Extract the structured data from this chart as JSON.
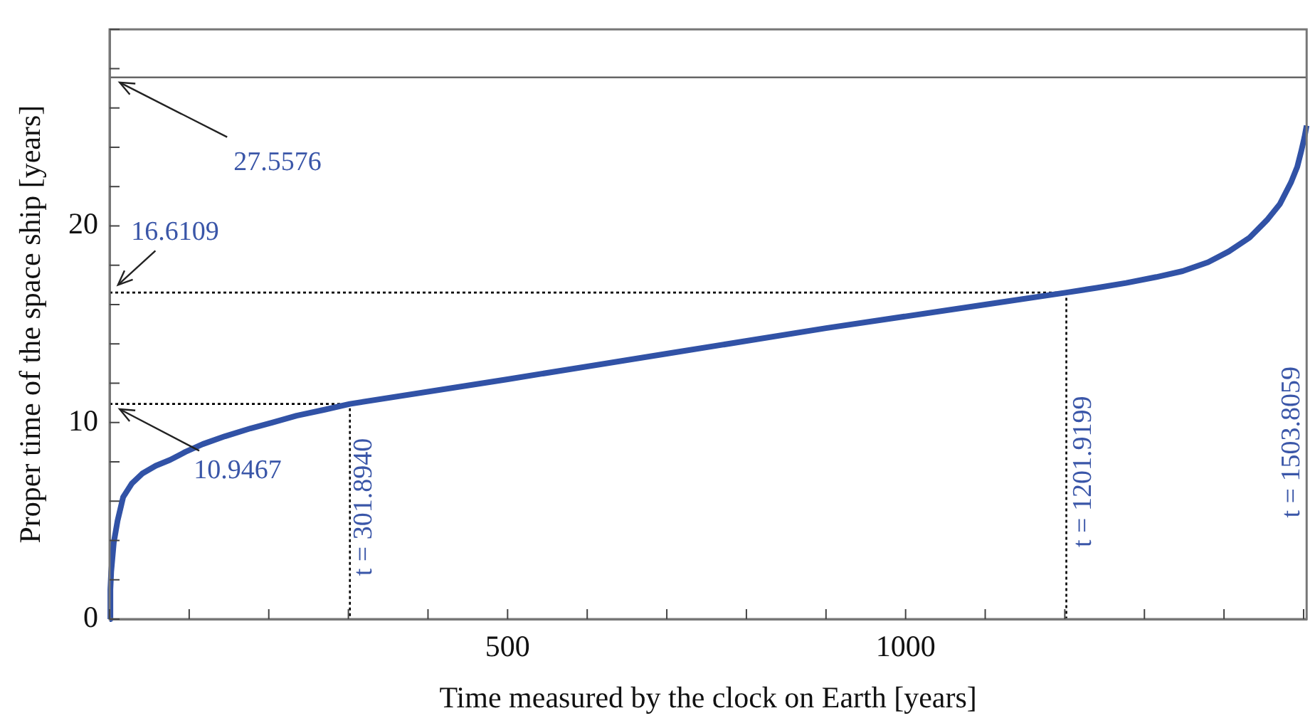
{
  "chart_data": {
    "type": "line",
    "xlabel": "Time measured by the clock on Earth [years]",
    "ylabel": "Proper time of the space ship [years]",
    "xlim": [
      0,
      1503.8059
    ],
    "ylim": [
      0,
      30
    ],
    "xticks": [
      {
        "value": 0,
        "label": null
      },
      {
        "value": 100,
        "label": null
      },
      {
        "value": 200,
        "label": null
      },
      {
        "value": 300,
        "label": null
      },
      {
        "value": 400,
        "label": null
      },
      500,
      {
        "value": 600,
        "label": null
      },
      {
        "value": 700,
        "label": null
      },
      {
        "value": 800,
        "label": null
      },
      {
        "value": 900,
        "label": null
      },
      1000,
      {
        "value": 1100,
        "label": null
      },
      {
        "value": 1200,
        "label": null
      },
      {
        "value": 1300,
        "label": null
      },
      {
        "value": 1400,
        "label": null
      },
      {
        "value": 1500,
        "label": null
      }
    ],
    "yticks": [
      0,
      {
        "value": 2,
        "label": null
      },
      {
        "value": 4,
        "label": null
      },
      {
        "value": 6,
        "label": null
      },
      {
        "value": 8,
        "label": null
      },
      10,
      {
        "value": 12,
        "label": null
      },
      {
        "value": 14,
        "label": null
      },
      {
        "value": 16,
        "label": null
      },
      {
        "value": 18,
        "label": null
      },
      20,
      {
        "value": 22,
        "label": null
      },
      {
        "value": 24,
        "label": null
      },
      {
        "value": 26,
        "label": null
      },
      {
        "value": 28,
        "label": null
      },
      {
        "value": 30,
        "label": null
      }
    ],
    "series": [
      {
        "color": "#3152a6",
        "line_style": "solid",
        "x": [
          0,
          1,
          2,
          5.3,
          10,
          17,
          28,
          41,
          58,
          76,
          95,
          117,
          145,
          177,
          205,
          235,
          270,
          301.894,
          500,
          700,
          900,
          1100,
          1201.9199,
          1240,
          1277,
          1315,
          1348,
          1380,
          1406,
          1432,
          1454,
          1470,
          1484,
          1492,
          1497,
          1501,
          1503.8059
        ],
        "values": [
          0,
          1.5,
          2.4,
          3.9,
          5.0,
          6.2,
          6.9,
          7.4,
          7.8,
          8.1,
          8.5,
          8.9,
          9.3,
          9.7,
          10.0,
          10.35,
          10.65,
          10.9467,
          12.2,
          13.5,
          14.8,
          16.0,
          16.6109,
          16.85,
          17.1,
          17.4,
          17.7,
          18.15,
          18.7,
          19.4,
          20.3,
          21.1,
          22.2,
          23.0,
          23.8,
          24.5,
          25.1
        ]
      },
      {
        "color": "#000000",
        "line_style": "dotted",
        "x": [
          0,
          301.894,
          301.894
        ],
        "values": [
          10.9467,
          10.9467,
          0
        ]
      },
      {
        "color": "#000000",
        "line_style": "dotted",
        "x": [
          0,
          1201.9199,
          1201.9199
        ],
        "values": [
          16.6109,
          16.6109,
          0
        ]
      }
    ],
    "ref_lines": [
      {
        "axis": "y",
        "value": 27.5576,
        "label": "27.5576",
        "color": "#666666",
        "line_style": "solid"
      }
    ],
    "annotations": [
      {
        "text": "16.6109",
        "x": 0,
        "y": 16.6109
      },
      {
        "text": "10.9467",
        "x": 0,
        "y": 10.9467
      },
      {
        "text": "t = 301.8940",
        "x": 301.894
      },
      {
        "text": "t = 1201.9199",
        "x": 1201.9199
      },
      "t = 1503.8059"
    ],
    "grid": false,
    "legend": false,
    "marker": "none"
  }
}
